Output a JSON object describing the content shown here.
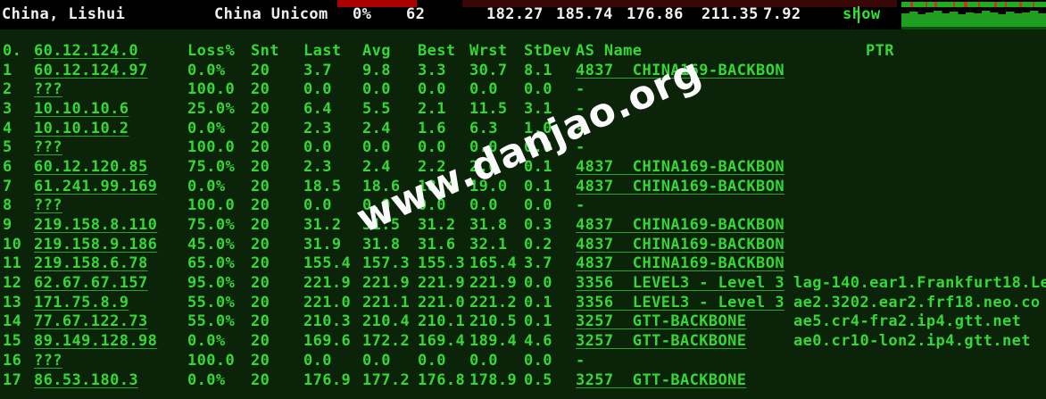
{
  "status_bar": {
    "location": "China, Lishui",
    "isp": "China Unicom",
    "loss": "0%",
    "snt": "62",
    "last": "182.27",
    "avg": "185.74",
    "best": "176.86",
    "wrst": "211.35",
    "stdev": "7.92",
    "toggle_label": "show"
  },
  "table": {
    "header": {
      "hop": "0.",
      "ip": "60.12.124.0",
      "loss": "Loss%",
      "snt": "Snt",
      "last": "Last",
      "avg": "Avg",
      "best": "Best",
      "wrst": "Wrst",
      "stdev": "StDev",
      "as": "AS Name",
      "ptr": "PTR"
    },
    "hops": [
      {
        "hop": "1",
        "ip": "60.12.124.97",
        "loss": "0.0%",
        "snt": "20",
        "last": "3.7",
        "avg": "9.8",
        "best": "3.3",
        "wrst": "30.7",
        "stdev": "8.1",
        "as": "4837  CHINA169-BACKBON",
        "ptr": ""
      },
      {
        "hop": "2",
        "ip": "???",
        "loss": "100.0",
        "snt": "20",
        "last": "0.0",
        "avg": "0.0",
        "best": "0.0",
        "wrst": "0.0",
        "stdev": "0.0",
        "as": "-",
        "ptr": ""
      },
      {
        "hop": "3",
        "ip": "10.10.10.6",
        "loss": "25.0%",
        "snt": "20",
        "last": "6.4",
        "avg": "5.5",
        "best": "2.1",
        "wrst": "11.5",
        "stdev": "3.1",
        "as": "-",
        "ptr": ""
      },
      {
        "hop": "4",
        "ip": "10.10.10.2",
        "loss": "0.0%",
        "snt": "20",
        "last": "2.3",
        "avg": "2.4",
        "best": "1.6",
        "wrst": "6.3",
        "stdev": "1.0",
        "as": "-",
        "ptr": ""
      },
      {
        "hop": "5",
        "ip": "???",
        "loss": "100.0",
        "snt": "20",
        "last": "0.0",
        "avg": "0.0",
        "best": "0.0",
        "wrst": "0.0",
        "stdev": "0.0",
        "as": "-",
        "ptr": ""
      },
      {
        "hop": "6",
        "ip": "60.12.120.85",
        "loss": "75.0%",
        "snt": "20",
        "last": "2.3",
        "avg": "2.4",
        "best": "2.2",
        "wrst": "2.6",
        "stdev": "0.1",
        "as": "4837  CHINA169-BACKBON",
        "ptr": ""
      },
      {
        "hop": "7",
        "ip": "61.241.99.169",
        "loss": "0.0%",
        "snt": "20",
        "last": "18.5",
        "avg": "18.6",
        "best": "18.4",
        "wrst": "19.0",
        "stdev": "0.1",
        "as": "4837  CHINA169-BACKBON",
        "ptr": ""
      },
      {
        "hop": "8",
        "ip": "???",
        "loss": "100.0",
        "snt": "20",
        "last": "0.0",
        "avg": "0.0",
        "best": "0.0",
        "wrst": "0.0",
        "stdev": "0.0",
        "as": "-",
        "ptr": ""
      },
      {
        "hop": "9",
        "ip": "219.158.8.110",
        "loss": "75.0%",
        "snt": "20",
        "last": "31.2",
        "avg": "31.5",
        "best": "31.2",
        "wrst": "31.8",
        "stdev": "0.3",
        "as": "4837  CHINA169-BACKBON",
        "ptr": ""
      },
      {
        "hop": "10",
        "ip": "219.158.9.186",
        "loss": "45.0%",
        "snt": "20",
        "last": "31.9",
        "avg": "31.8",
        "best": "31.6",
        "wrst": "32.1",
        "stdev": "0.2",
        "as": "4837  CHINA169-BACKBON",
        "ptr": ""
      },
      {
        "hop": "11",
        "ip": "219.158.6.78",
        "loss": "65.0%",
        "snt": "20",
        "last": "155.4",
        "avg": "157.3",
        "best": "155.3",
        "wrst": "165.4",
        "stdev": "3.7",
        "as": "4837  CHINA169-BACKBON",
        "ptr": ""
      },
      {
        "hop": "12",
        "ip": "62.67.67.157",
        "loss": "95.0%",
        "snt": "20",
        "last": "221.9",
        "avg": "221.9",
        "best": "221.9",
        "wrst": "221.9",
        "stdev": "0.0",
        "as": "3356  LEVEL3 - Level 3",
        "ptr": "lag-140.ear1.Frankfurt18.Le"
      },
      {
        "hop": "13",
        "ip": "171.75.8.9",
        "loss": "55.0%",
        "snt": "20",
        "last": "221.0",
        "avg": "221.1",
        "best": "221.0",
        "wrst": "221.2",
        "stdev": "0.1",
        "as": "3356  LEVEL3 - Level 3",
        "ptr": "ae2.3202.ear2.frf18.neo.co"
      },
      {
        "hop": "14",
        "ip": "77.67.122.73",
        "loss": "55.0%",
        "snt": "20",
        "last": "210.3",
        "avg": "210.4",
        "best": "210.1",
        "wrst": "210.5",
        "stdev": "0.1",
        "as": "3257  GTT-BACKBONE",
        "ptr": "ae5.cr4-fra2.ip4.gtt.net"
      },
      {
        "hop": "15",
        "ip": "89.149.128.98",
        "loss": "0.0%",
        "snt": "20",
        "last": "169.6",
        "avg": "172.2",
        "best": "169.4",
        "wrst": "189.4",
        "stdev": "4.6",
        "as": "3257  GTT-BACKBONE",
        "ptr": "ae0.cr10-lon2.ip4.gtt.net"
      },
      {
        "hop": "16",
        "ip": "???",
        "loss": "100.0",
        "snt": "20",
        "last": "0.0",
        "avg": "0.0",
        "best": "0.0",
        "wrst": "0.0",
        "stdev": "0.0",
        "as": "-",
        "ptr": ""
      },
      {
        "hop": "17",
        "ip": "86.53.180.3",
        "loss": "0.0%",
        "snt": "20",
        "last": "176.9",
        "avg": "177.2",
        "best": "176.8",
        "wrst": "178.9",
        "stdev": "0.5",
        "as": "3257  GTT-BACKBONE",
        "ptr": ""
      }
    ]
  },
  "watermark": "www.danjao.org",
  "colors": {
    "terminal_bg": "#0b2308",
    "terminal_green": "#35d635",
    "statusbar_bg": "#000000",
    "statusbar_text": "#f0f0f0",
    "alert_red_bright": "#ab0000",
    "alert_red_dark": "#3a0707",
    "spark_green": "#1fae1f",
    "spark_red": "#cc3322",
    "spark_block": "#1f9e1f",
    "spark_base": "#0c4f0c"
  },
  "sparkline": {
    "dash": [
      [
        10,
        "g"
      ],
      [
        3,
        "r"
      ],
      [
        14,
        "g"
      ],
      [
        2,
        "r"
      ],
      [
        8,
        "g"
      ],
      [
        3,
        "r"
      ],
      [
        18,
        "g"
      ],
      [
        2,
        "r"
      ],
      [
        10,
        "g"
      ],
      [
        4,
        "r"
      ],
      [
        12,
        "g"
      ],
      [
        2,
        "r"
      ],
      [
        16,
        "g"
      ],
      [
        3,
        "r"
      ],
      [
        9,
        "g"
      ],
      [
        2,
        "r"
      ],
      [
        14,
        "g"
      ],
      [
        3,
        "r"
      ],
      [
        12,
        "g"
      ],
      [
        2,
        "r"
      ],
      [
        13,
        "g"
      ]
    ],
    "bars": [
      15,
      17,
      14,
      16,
      18,
      15,
      17,
      14,
      16,
      15,
      18,
      16,
      14,
      17,
      15,
      16,
      18,
      15
    ]
  }
}
